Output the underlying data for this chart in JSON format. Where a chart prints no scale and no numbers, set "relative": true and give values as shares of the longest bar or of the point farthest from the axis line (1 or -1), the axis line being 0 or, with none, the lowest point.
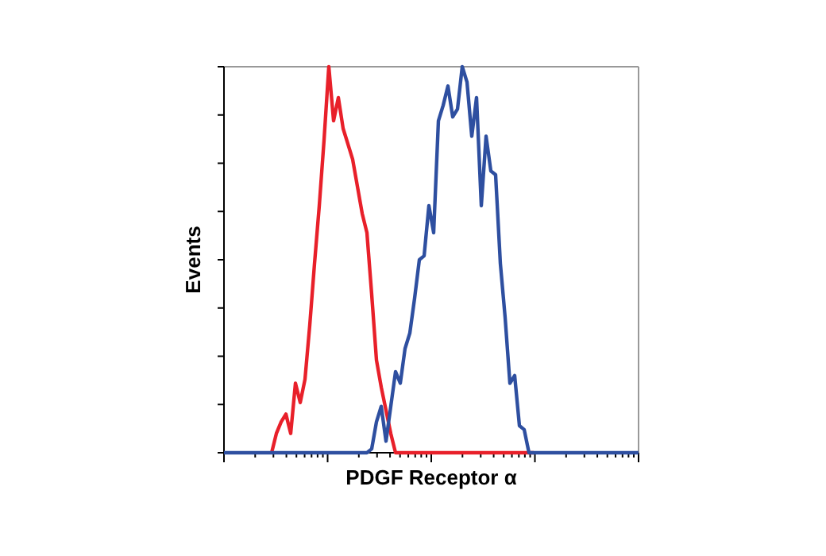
{
  "chart_data": {
    "type": "line",
    "relative": true,
    "xlabel": "PDGF Receptor α",
    "ylabel": "Events",
    "grid": false,
    "marker": "none",
    "line_style": "solid",
    "categories": [
      null,
      null,
      null,
      null,
      null,
      null,
      null,
      null,
      null,
      null,
      null,
      null,
      null,
      null,
      null,
      null,
      null,
      null,
      null,
      null,
      null,
      null,
      null,
      null,
      null,
      null,
      null,
      null,
      null,
      null,
      null,
      null,
      null,
      null,
      null,
      null,
      null,
      null,
      null,
      null,
      null,
      null,
      null,
      null,
      null,
      null,
      null,
      null,
      null,
      null,
      null,
      null,
      null,
      null,
      null,
      null,
      null,
      null,
      null,
      null,
      null,
      null,
      null,
      null,
      null,
      null,
      null,
      null,
      null,
      null,
      null,
      null,
      null,
      null,
      null,
      null,
      null,
      null,
      null,
      null,
      null,
      null,
      null,
      null,
      null,
      null,
      null,
      null
    ],
    "series": [
      {
        "color": "#e8202a",
        "values": [
          null,
          null,
          null,
          null,
          null,
          null,
          null,
          null,
          null,
          null,
          0,
          0.05,
          0.08,
          0.1,
          0.05,
          0.18,
          0.13,
          0.19,
          0.33,
          0.49,
          0.64,
          0.81,
          1,
          0.86,
          0.92,
          0.84,
          0.8,
          0.76,
          0.69,
          0.62,
          0.57,
          0.41,
          0.24,
          0.17,
          0.11,
          0.05,
          0,
          0,
          0,
          0,
          0,
          0,
          0,
          0,
          0,
          0,
          0,
          0,
          0,
          0,
          0,
          0,
          0,
          0,
          0,
          0,
          0,
          0,
          0,
          0,
          0,
          0,
          0,
          0,
          0,
          0,
          null,
          null,
          null,
          null,
          null,
          null,
          null,
          null,
          null,
          null,
          null,
          null,
          null,
          null,
          null,
          null,
          null,
          null,
          null,
          null,
          null,
          null
        ]
      },
      {
        "color": "#2e4fa0",
        "values": [
          0,
          0,
          0,
          0,
          0,
          0,
          0,
          0,
          0,
          0,
          0,
          0,
          0,
          0,
          0,
          0,
          0,
          0,
          0,
          0,
          0,
          0,
          0,
          0,
          0,
          0,
          0,
          0,
          0,
          0,
          0,
          0.01,
          0.08,
          0.12,
          0.03,
          0.12,
          0.21,
          0.18,
          0.27,
          0.31,
          0.4,
          0.5,
          0.51,
          0.64,
          0.57,
          0.86,
          0.9,
          0.95,
          0.87,
          0.89,
          1,
          0.96,
          0.82,
          0.92,
          0.64,
          0.82,
          0.73,
          0.72,
          0.49,
          0.35,
          0.18,
          0.2,
          0.07,
          0.06,
          0,
          0,
          0,
          0,
          0,
          0,
          0,
          0,
          0,
          0,
          0,
          0,
          0,
          0,
          0,
          0,
          0,
          0,
          0,
          0,
          0,
          0,
          0,
          0
        ]
      }
    ]
  }
}
